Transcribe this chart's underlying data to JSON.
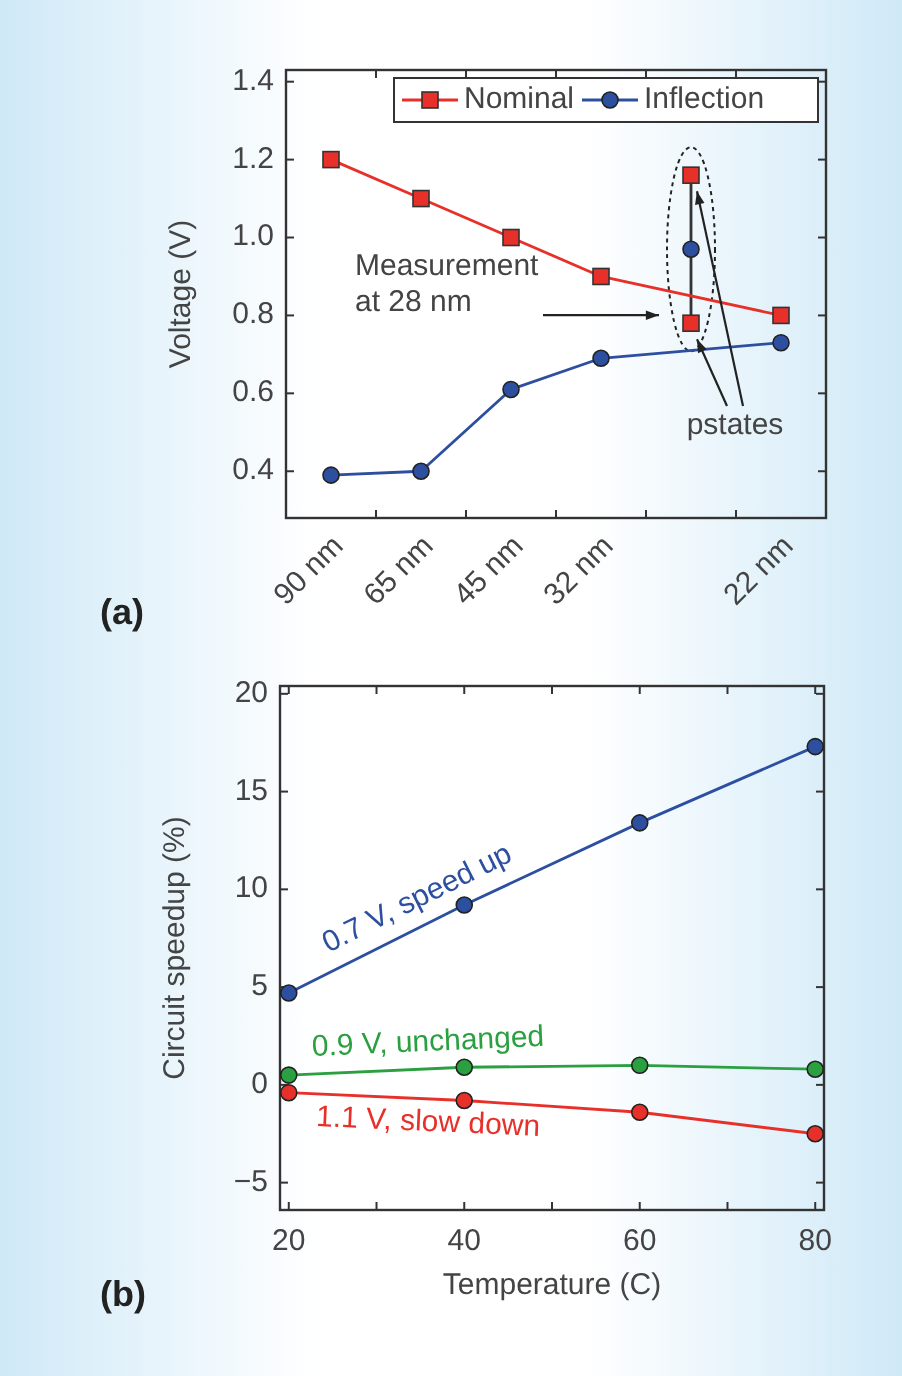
{
  "chart_data": [
    {
      "type": "line",
      "title": "(a)",
      "ylabel": "Voltage (V)",
      "ylim": [
        0.28,
        1.43
      ],
      "categories": [
        "90 nm",
        "65 nm",
        "45 nm",
        "32 nm",
        null,
        "22 nm"
      ],
      "yticks": [
        0.4,
        0.6,
        {
          "value": 0.8,
          "label": "0.8"
        },
        {
          "value": 1.0,
          "label": "1.0"
        },
        1.2,
        1.4
      ],
      "grid": false,
      "legend": "top right",
      "series": [
        {
          "name": "Nominal",
          "marker": "square",
          "color": "#e8302a",
          "values": [
            1.2,
            1.1,
            1.0,
            0.9,
            null,
            0.8
          ]
        },
        {
          "name": "Inflection",
          "marker": "circle",
          "color": "#2d4fa0",
          "values": [
            0.39,
            0.4,
            0.61,
            0.69,
            null,
            0.73
          ]
        },
        {
          "type": "scatter",
          "marker": "square",
          "color": "#e8302a",
          "values": [
            null,
            null,
            null,
            null,
            1.16,
            null
          ]
        },
        {
          "type": "scatter",
          "marker": "square",
          "color": "#e8302a",
          "values": [
            null,
            null,
            null,
            null,
            0.78,
            null
          ]
        },
        {
          "type": "scatter",
          "marker": "circle",
          "color": "#2d4fa0",
          "values": [
            null,
            null,
            null,
            null,
            0.97,
            null
          ]
        }
      ],
      "annotations": [
        "Measurement at 28 nm",
        "pstates"
      ]
    },
    {
      "type": "line",
      "title": "(b)",
      "xlabel": "Temperature (C)",
      "ylabel": "Circuit speedup (%)",
      "xlim": [
        19,
        81
      ],
      "ylim": [
        -6.4,
        20.4
      ],
      "xticks": [
        20,
        {
          "value": 30,
          "label": null
        },
        40,
        {
          "value": 50,
          "label": null
        },
        60,
        {
          "value": 70,
          "label": null
        },
        80
      ],
      "yticks": [
        {
          "value": -5,
          "label": "−5"
        },
        0,
        5,
        10,
        15,
        20
      ],
      "grid": false,
      "legend": false,
      "marker": "circle",
      "series": [
        {
          "name": "0.7 V,  speed up",
          "color": "#2d4fa0",
          "x": [
            20,
            40,
            60,
            80
          ],
          "values": [
            4.7,
            9.2,
            13.4,
            17.3
          ]
        },
        {
          "name": "0.9 V, unchanged",
          "color": "#2aa040",
          "x": [
            20,
            40,
            60,
            80
          ],
          "values": [
            0.5,
            0.9,
            1.0,
            0.8
          ]
        },
        {
          "name": "1.1 V, slow down",
          "color": "#e8302a",
          "x": [
            20,
            40,
            60,
            80
          ],
          "values": [
            -0.4,
            -0.8,
            -1.4,
            -2.5
          ]
        }
      ]
    }
  ]
}
